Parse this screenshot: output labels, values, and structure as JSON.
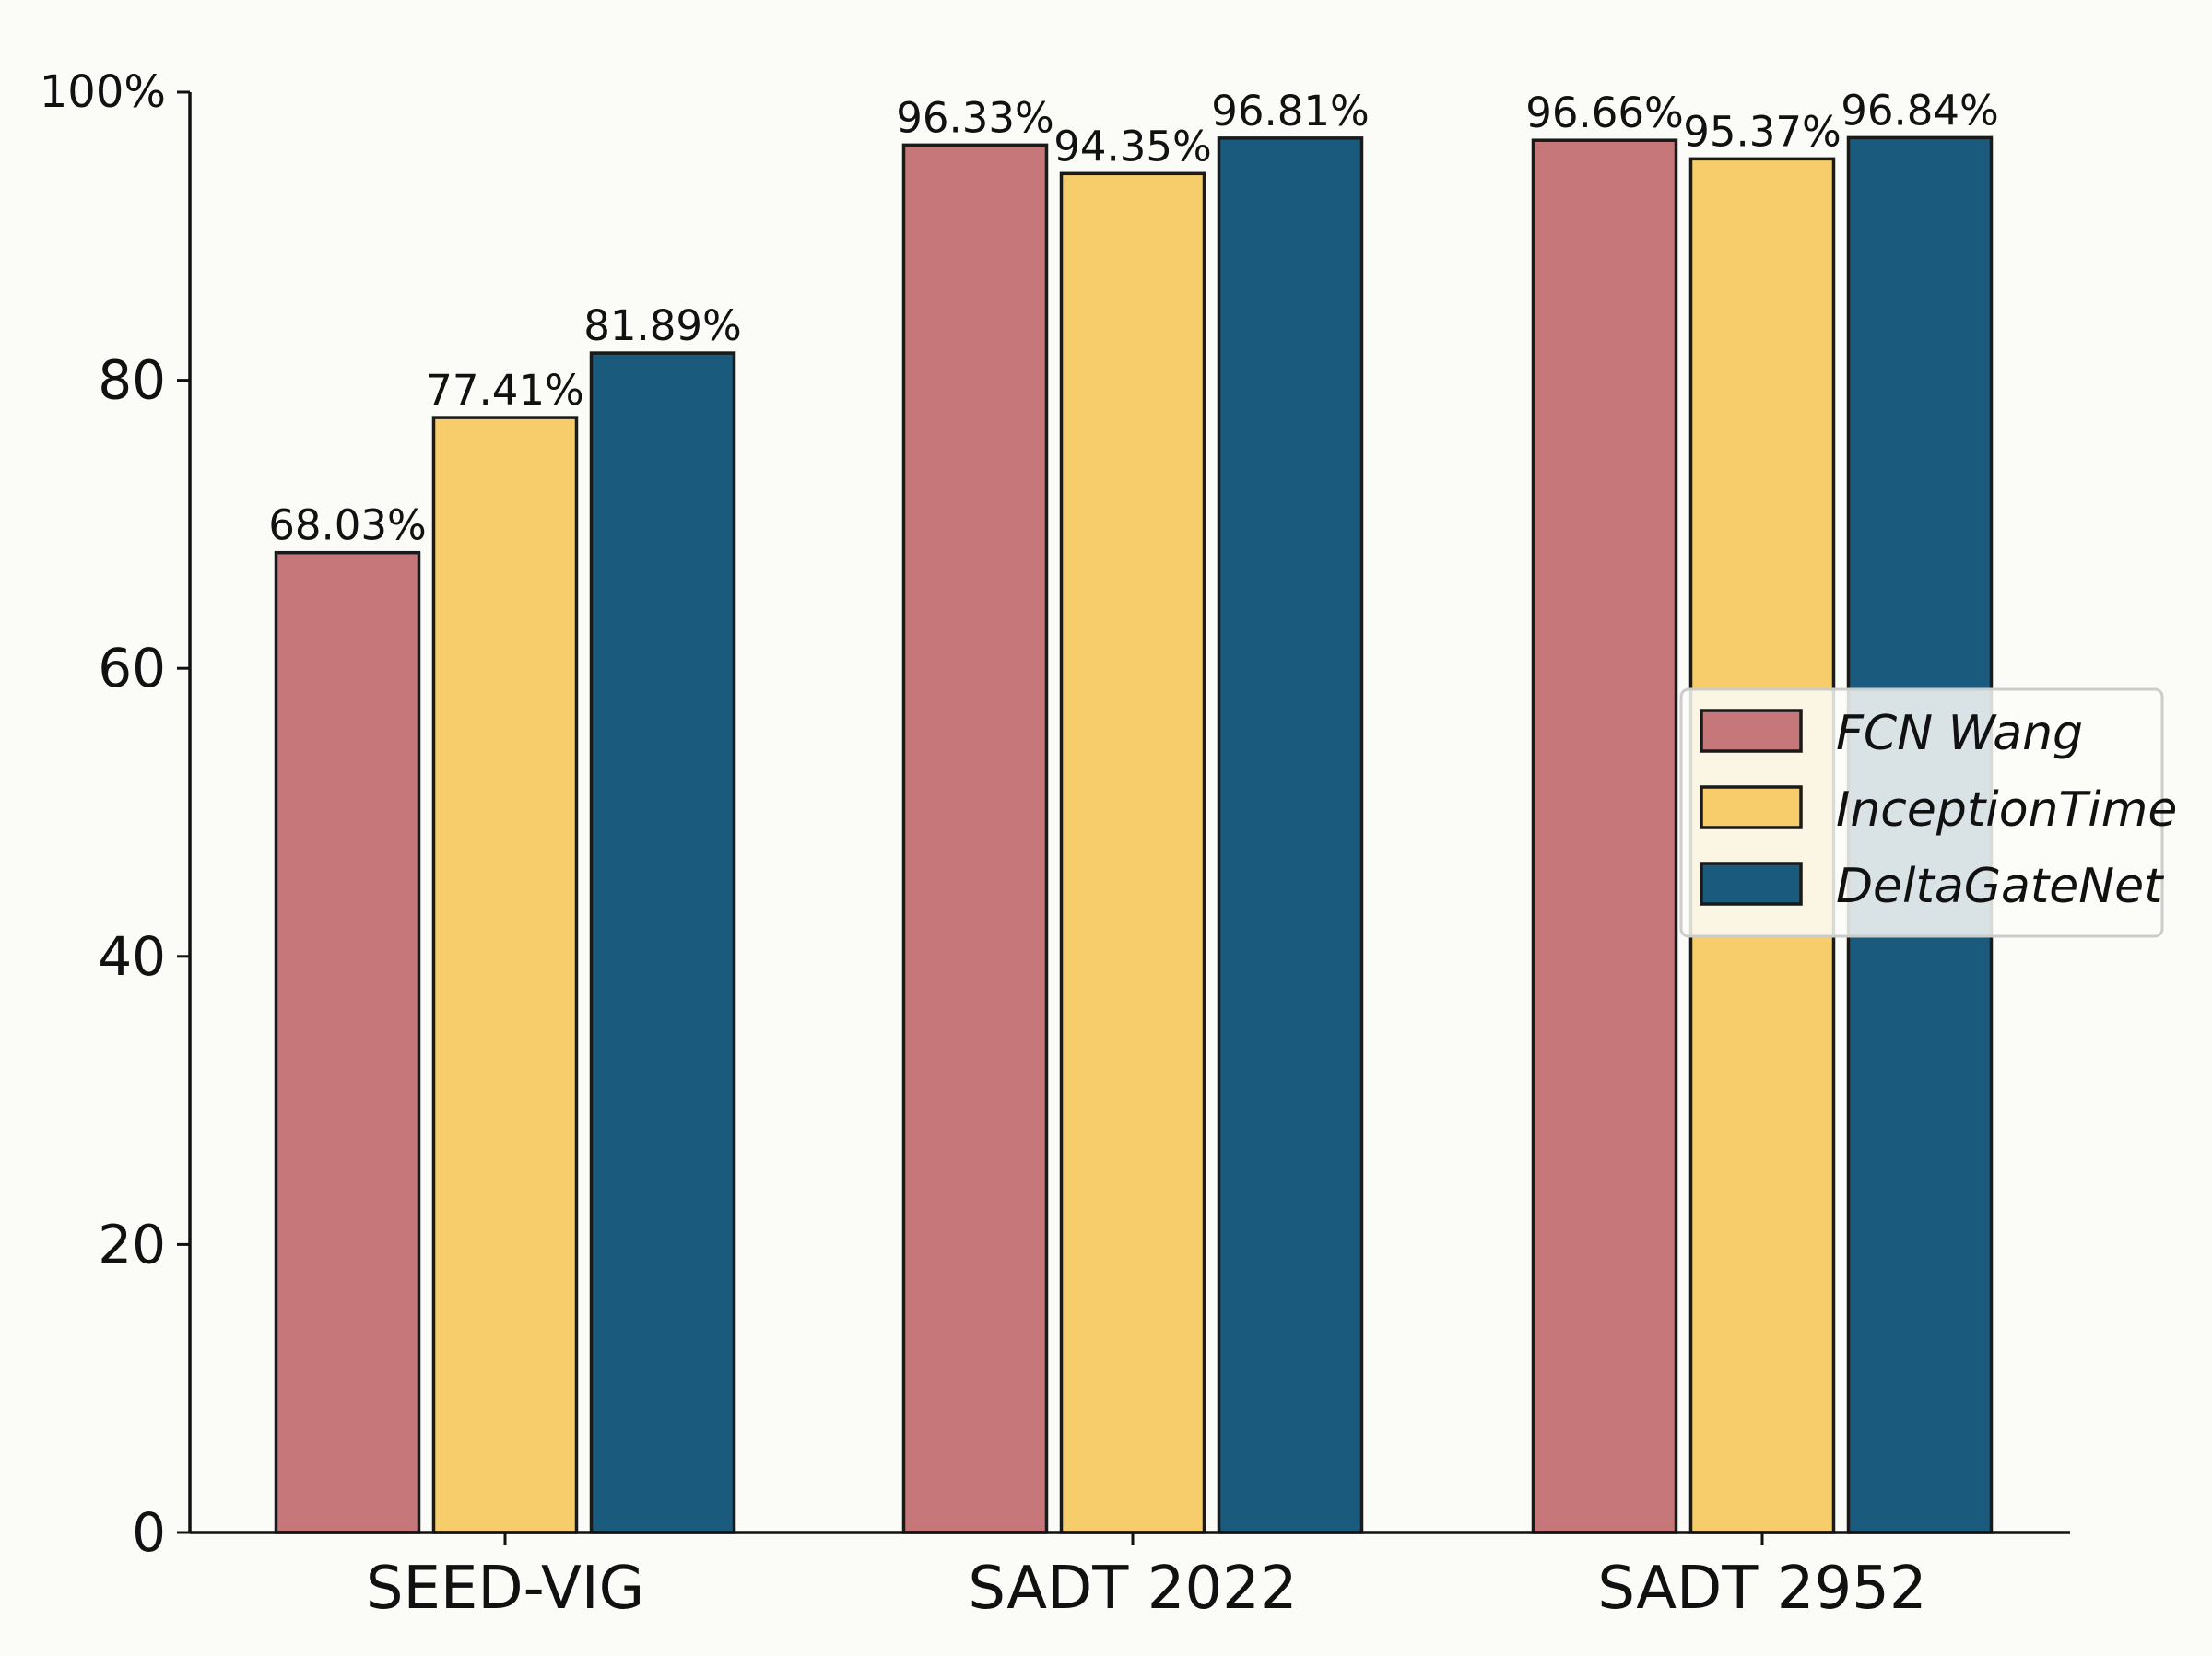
{
  "chart_data": {
    "type": "bar",
    "title": "",
    "xlabel": "",
    "ylabel": "",
    "categories": [
      "SEED-VIG",
      "SADT 2022",
      "SADT 2952"
    ],
    "series": [
      {
        "name": "FCN Wang",
        "color": "#c5777a",
        "values": [
          68.03,
          96.33,
          96.66
        ],
        "labels": [
          "68.03%",
          "96.33%",
          "96.66%"
        ]
      },
      {
        "name": "InceptionTime",
        "color": "#f6cd6a",
        "values": [
          77.41,
          94.35,
          95.37
        ],
        "labels": [
          "77.41%",
          "94.35%",
          "95.37%"
        ]
      },
      {
        "name": "DeltaGateNet",
        "color": "#1a5b7d",
        "values": [
          81.89,
          96.81,
          96.84
        ],
        "labels": [
          "81.89%",
          "96.81%",
          "96.84%"
        ]
      }
    ],
    "ylim": [
      0,
      100
    ],
    "yticks": [
      0,
      20,
      40,
      60,
      80,
      100
    ],
    "ytick_labels": [
      "0",
      "20",
      "40",
      "60",
      "80",
      "100%"
    ],
    "grid": false,
    "legend_position": "center-right"
  }
}
